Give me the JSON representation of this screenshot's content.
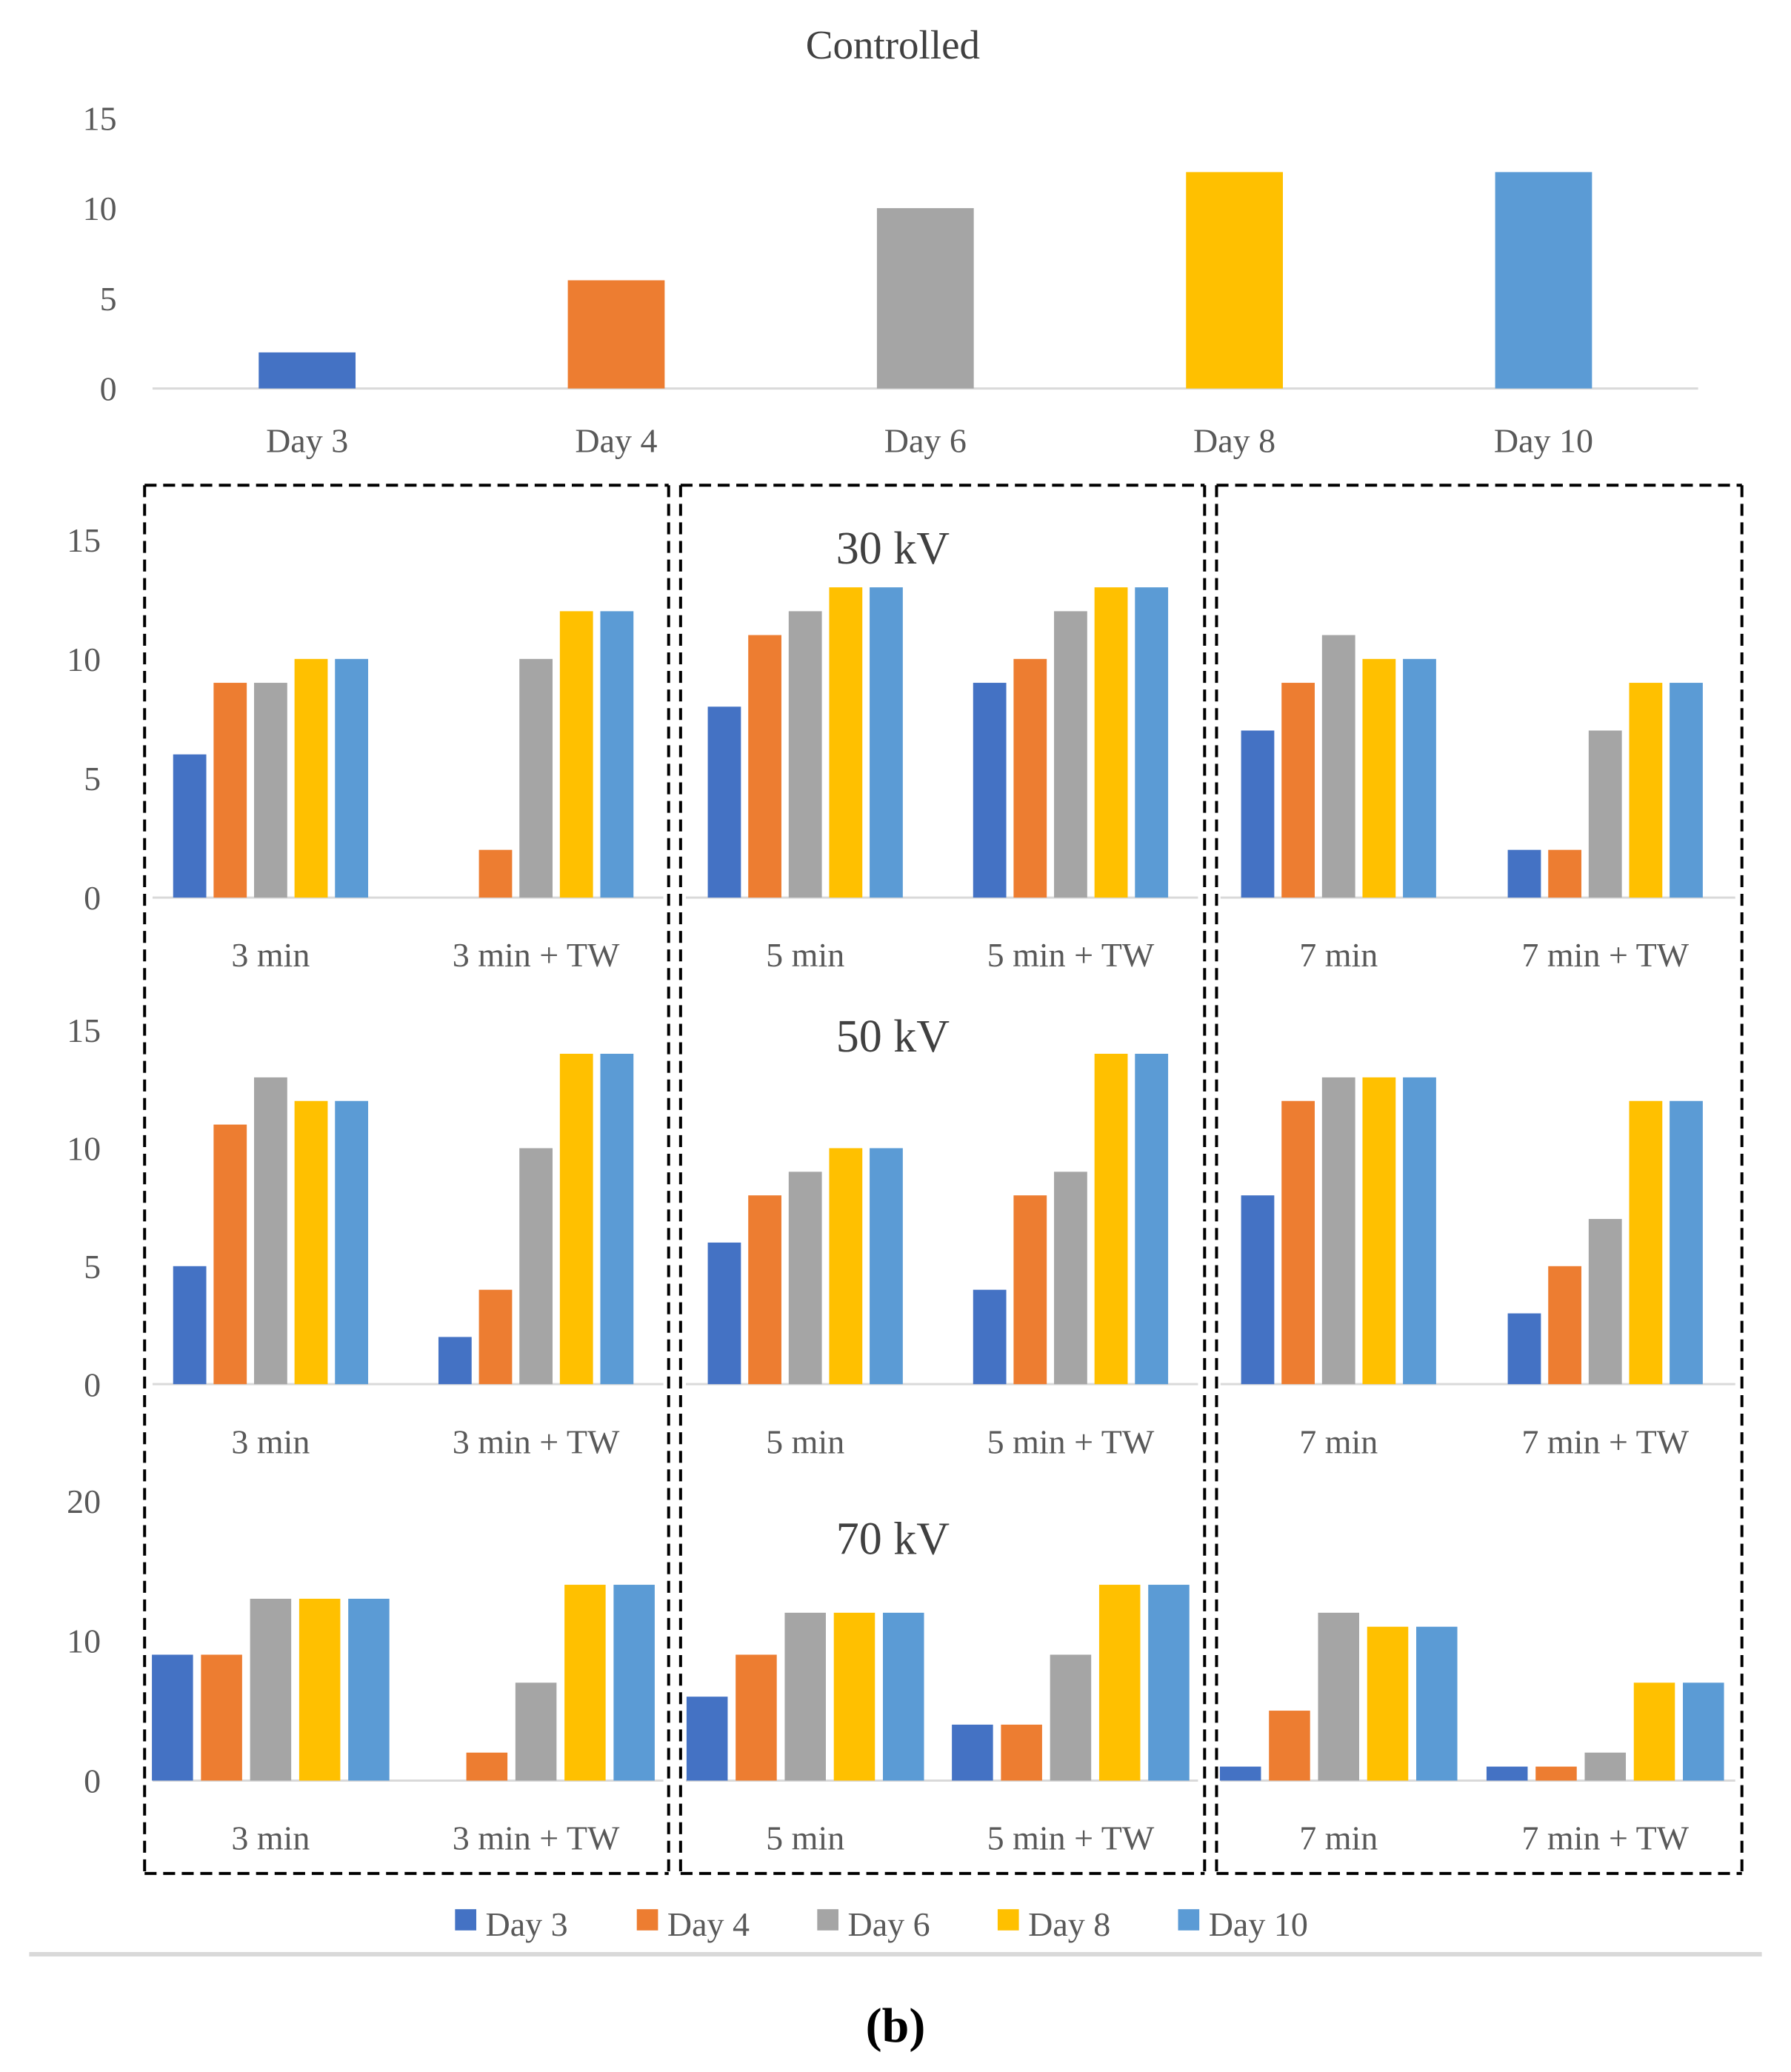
{
  "colors": {
    "Day 3": "#4472C4",
    "Day 4": "#ED7D31",
    "Day 6": "#A5A5A5",
    "Day 8": "#FFC000",
    "Day 10": "#5B9BD5",
    "axis": "#D9D9D9",
    "text": "#595959",
    "title_text": "#404040",
    "dash_box": "#000000"
  },
  "panel_label": "(b)",
  "legend": [
    "Day 3",
    "Day 4",
    "Day 6",
    "Day 8",
    "Day 10"
  ],
  "chart_data": [
    {
      "id": "controlled",
      "type": "bar",
      "title": "Controlled",
      "categories": [
        "Day 3",
        "Day 4",
        "Day 6",
        "Day 8",
        "Day 10"
      ],
      "values": [
        2,
        6,
        10,
        12,
        12
      ],
      "y_ticks": [
        "0",
        "5",
        "10",
        "15"
      ],
      "ylim": [
        0,
        15
      ]
    },
    {
      "id": "kv30",
      "type": "bar",
      "title": "30 kV",
      "ylim": [
        0,
        15
      ],
      "y_ticks": [
        "0",
        "5",
        "10",
        "15"
      ],
      "categories": [
        "3 min",
        "3 min + TW",
        "5 min",
        "5 min + TW",
        "7 min",
        "7 min + TW"
      ],
      "series": [
        {
          "name": "Day 3",
          "values": [
            6,
            0,
            8,
            9,
            7,
            2
          ]
        },
        {
          "name": "Day 4",
          "values": [
            9,
            2,
            11,
            10,
            9,
            2
          ]
        },
        {
          "name": "Day 6",
          "values": [
            9,
            10,
            12,
            12,
            11,
            7
          ]
        },
        {
          "name": "Day 8",
          "values": [
            10,
            12,
            13,
            13,
            10,
            9
          ]
        },
        {
          "name": "Day 10",
          "values": [
            10,
            12,
            13,
            13,
            10,
            9
          ]
        }
      ]
    },
    {
      "id": "kv50",
      "type": "bar",
      "title": "50 kV",
      "ylim": [
        0,
        15
      ],
      "y_ticks": [
        "0",
        "5",
        "10",
        "15"
      ],
      "categories": [
        "3 min",
        "3 min + TW",
        "5 min",
        "5 min + TW",
        "7 min",
        "7 min + TW"
      ],
      "series": [
        {
          "name": "Day 3",
          "values": [
            5,
            2,
            6,
            4,
            8,
            3
          ]
        },
        {
          "name": "Day 4",
          "values": [
            11,
            4,
            8,
            8,
            12,
            5
          ]
        },
        {
          "name": "Day 6",
          "values": [
            13,
            10,
            9,
            9,
            13,
            7
          ]
        },
        {
          "name": "Day 8",
          "values": [
            12,
            14,
            10,
            14,
            13,
            12
          ]
        },
        {
          "name": "Day 10",
          "values": [
            12,
            14,
            10,
            14,
            13,
            12
          ]
        }
      ]
    },
    {
      "id": "kv70",
      "type": "bar",
      "title": "70 kV",
      "ylim": [
        0,
        20
      ],
      "y_ticks": [
        "0",
        "10",
        "20"
      ],
      "categories": [
        "3 min",
        "3 min + TW",
        "5 min",
        "5 min + TW",
        "7 min",
        "7 min + TW"
      ],
      "series": [
        {
          "name": "Day 3",
          "values": [
            9,
            0,
            6,
            4,
            1,
            1
          ]
        },
        {
          "name": "Day 4",
          "values": [
            9,
            2,
            9,
            4,
            5,
            1
          ]
        },
        {
          "name": "Day 6",
          "values": [
            13,
            7,
            12,
            9,
            12,
            2
          ]
        },
        {
          "name": "Day 8",
          "values": [
            13,
            14,
            12,
            14,
            11,
            7
          ]
        },
        {
          "name": "Day 10",
          "values": [
            13,
            14,
            12,
            14,
            11,
            7
          ]
        }
      ]
    }
  ]
}
